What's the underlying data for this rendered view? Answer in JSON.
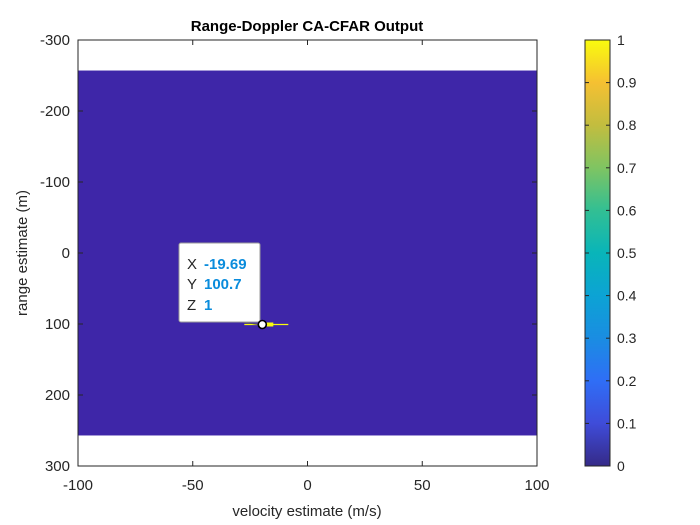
{
  "chart_data": {
    "type": "heatmap",
    "title": "Range-Doppler CA-CFAR Output",
    "xlabel": "velocity estimate (m/s)",
    "ylabel": "range estimate (m)",
    "xlim": [
      -100,
      100
    ],
    "ylim": [
      -300,
      300
    ],
    "y_direction": "reverse",
    "x_ticks": [
      "-100",
      "-50",
      "0",
      "50",
      "100"
    ],
    "y_ticks": [
      "-300",
      "-200",
      "-100",
      "0",
      "100",
      "200",
      "300"
    ],
    "image_extent": {
      "x": [
        -100,
        100
      ],
      "y": [
        -257,
        257
      ]
    },
    "background_value": 0,
    "detections": [
      {
        "x": -19.69,
        "y": 100.7,
        "value": 1
      }
    ],
    "colorbar": {
      "colormap": "parula",
      "range": [
        0,
        1
      ],
      "ticks": [
        "0",
        "0.1",
        "0.2",
        "0.3",
        "0.4",
        "0.5",
        "0.6",
        "0.7",
        "0.8",
        "0.9",
        "1"
      ]
    },
    "datatip": {
      "x_label": "X",
      "x_value": "-19.69",
      "y_label": "Y",
      "y_value": "100.7",
      "z_label": "Z",
      "z_value": "1"
    },
    "colors": {
      "background_cell": "#3e26a8",
      "detection": "#f9fb0e",
      "datatip_value": "#0a8cdc"
    }
  }
}
